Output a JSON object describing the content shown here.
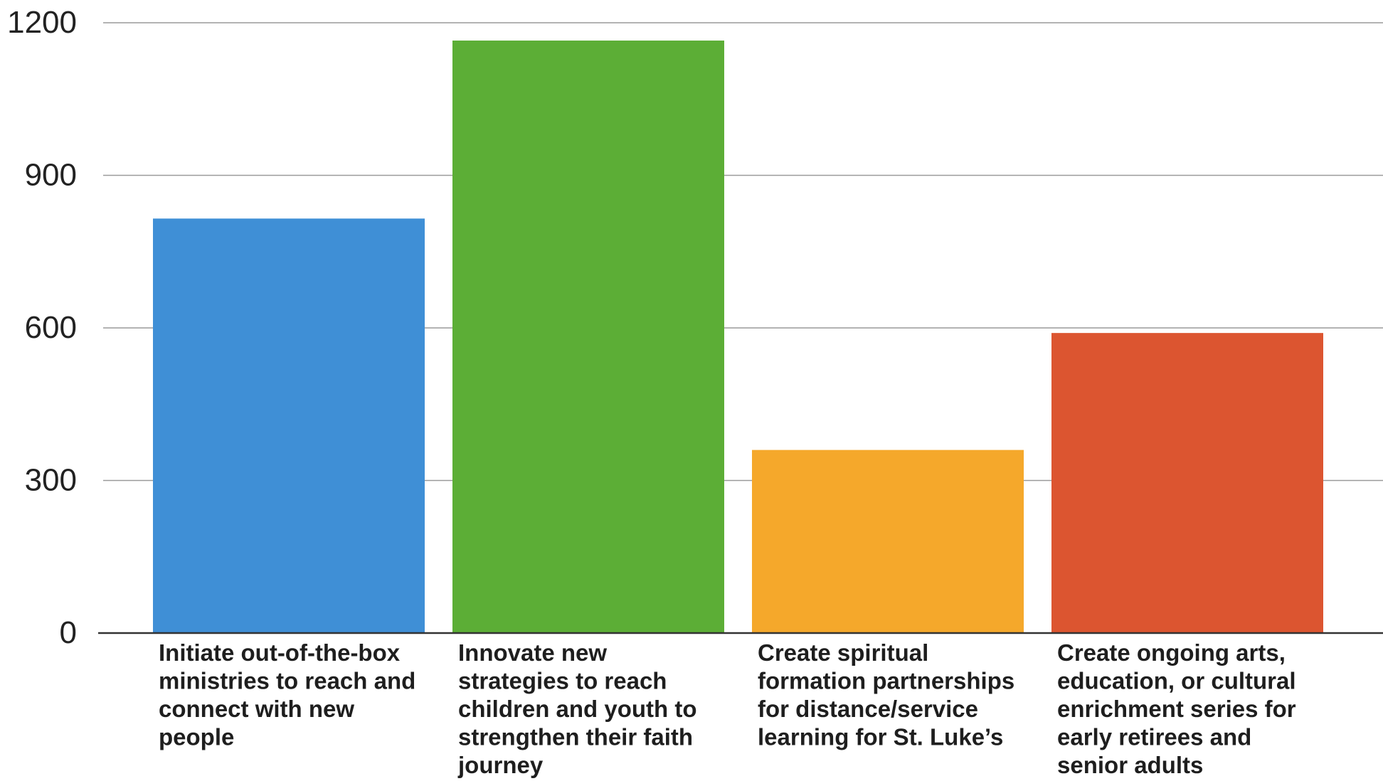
{
  "chart_data": {
    "type": "bar",
    "title": "",
    "xlabel": "",
    "ylabel": "",
    "ylim": [
      0,
      1200
    ],
    "yticks": [
      "0",
      "300",
      "600",
      "900",
      "1200"
    ],
    "grid": true,
    "categories": [
      "Initiate out-of-the-box ministries to reach and connect with new people",
      "Innovate new strategies to reach children and youth to strengthen their faith journey",
      "Create spiritual formation partnerships for distance/service learning for St. Luke’s",
      "Create ongoing arts, education, or cultural enrichment series for early retirees and senior adults"
    ],
    "category_lines": [
      [
        "Initiate out-of-the-box",
        "ministries to reach and",
        "connect with new",
        "people"
      ],
      [
        "Innovate new",
        "strategies to reach",
        "children and youth to",
        "strengthen their faith",
        "journey"
      ],
      [
        "Create spiritual",
        "formation partnerships",
        "for distance/service",
        "learning for St. Luke’s"
      ],
      [
        "Create ongoing arts,",
        "education, or cultural",
        "enrichment series for",
        "early retirees and",
        "senior adults"
      ]
    ],
    "values": [
      815,
      1165,
      360,
      590
    ],
    "colors": [
      "#3f8fd6",
      "#5cae36",
      "#f5a82b",
      "#dc5530"
    ],
    "gridline_color": "#9a9a9a",
    "axis_color": "#333333"
  }
}
